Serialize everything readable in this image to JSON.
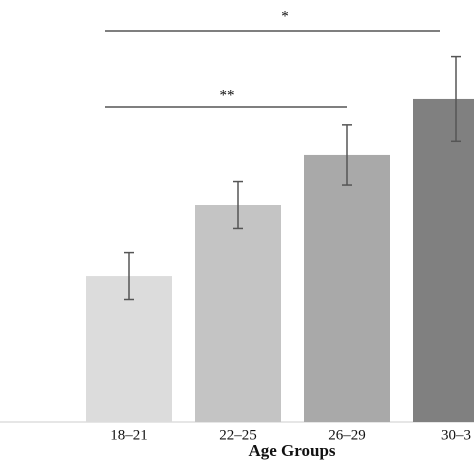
{
  "chart_data": {
    "type": "bar",
    "xlabel": "Age Groups",
    "categories": [
      "18–21",
      "22–25",
      "26–29",
      "30–3"
    ],
    "values": [
      41.7,
      62,
      76.3,
      92.3
    ],
    "errors": [
      6.7,
      6.7,
      8.6,
      12.1
    ],
    "colors": [
      "#dcdcdc",
      "#c4c4c4",
      "#a9a9a9",
      "#808080"
    ],
    "ylim": [
      0,
      120
    ],
    "significance": [
      "*",
      "**"
    ]
  }
}
